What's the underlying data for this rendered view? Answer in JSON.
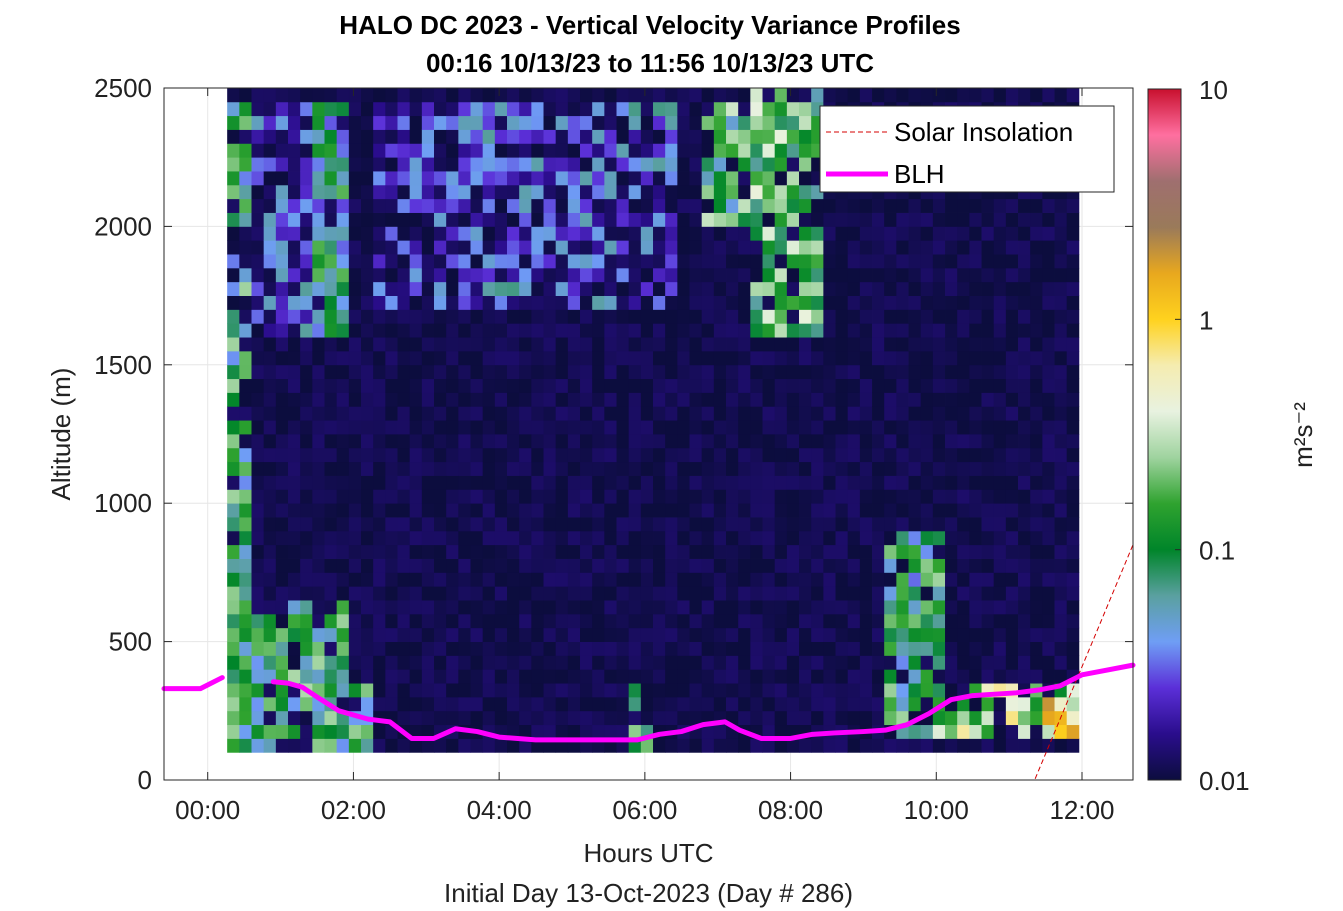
{
  "title": "HALO DC 2023 - Vertical Velocity Variance Profiles",
  "subtitle": "00:16 10/13/23 to 11:56 10/13/23  UTC",
  "chart_data": {
    "type": "heatmap",
    "title": "HALO DC 2023 - Vertical Velocity Variance Profiles",
    "subtitle": "00:16 10/13/23 to 11:56 10/13/23  UTC",
    "xlabel": "Hours UTC",
    "xlabel2": "Initial Day 13-Oct-2023 (Day # 286)",
    "ylabel": "Altitude (m)",
    "xlim_hours": [
      -0.6,
      12.7
    ],
    "ylim": [
      0,
      2500
    ],
    "x_ticks": [
      {
        "value": 0,
        "label": "00:00"
      },
      {
        "value": 2,
        "label": "02:00"
      },
      {
        "value": 4,
        "label": "04:00"
      },
      {
        "value": 6,
        "label": "06:00"
      },
      {
        "value": 8,
        "label": "08:00"
      },
      {
        "value": 10,
        "label": "10:00"
      },
      {
        "value": 12,
        "label": "12:00"
      }
    ],
    "y_ticks": [
      {
        "value": 0,
        "label": "0"
      },
      {
        "value": 500,
        "label": "500"
      },
      {
        "value": 1000,
        "label": "1000"
      },
      {
        "value": 1500,
        "label": "1500"
      },
      {
        "value": 2000,
        "label": "2000"
      },
      {
        "value": 2500,
        "label": "2500"
      }
    ],
    "grid": true,
    "legend_position": "top-right",
    "colorbar": {
      "label": "m²s⁻²",
      "scale": "log",
      "range": [
        0.01,
        10
      ],
      "ticks": [
        {
          "value": 0.01,
          "label": "0.01"
        },
        {
          "value": 0.1,
          "label": "0.1"
        },
        {
          "value": 1,
          "label": "1"
        },
        {
          "value": 10,
          "label": "10"
        }
      ],
      "colors": [
        "#0c0d3e",
        "#2a0d8c",
        "#5b2fd8",
        "#6f9ef5",
        "#5aa0a0",
        "#00852a",
        "#2fa32f",
        "#9fd39f",
        "#e8f2e0",
        "#f5ecb0",
        "#ffd21e",
        "#e8a81e",
        "#9a7a5a",
        "#9f6f6f",
        "#ff6fa0",
        "#c8102e"
      ]
    },
    "heatmap": {
      "time_start_hours": 0.267,
      "time_step_hours": 0.167,
      "altitude_start_m": 100,
      "altitude_step_m": 50,
      "background_value": 0.01,
      "elevated_regions": [
        {
          "t0": 0.25,
          "t1": 0.6,
          "z0": 250,
          "z1": 2450,
          "value": 0.09
        },
        {
          "t0": 0.6,
          "t1": 1.45,
          "z0": 1600,
          "z1": 2450,
          "value": 0.025
        },
        {
          "t0": 1.45,
          "t1": 1.9,
          "z0": 1600,
          "z1": 2450,
          "value": 0.07
        },
        {
          "t0": 0.25,
          "t1": 1.9,
          "z0": 100,
          "z1": 650,
          "value": 0.1
        },
        {
          "t0": 1.9,
          "t1": 2.2,
          "z0": 100,
          "z1": 350,
          "value": 0.1
        },
        {
          "t0": 2.2,
          "t1": 3.4,
          "z0": 1700,
          "z1": 2450,
          "value": 0.018
        },
        {
          "t0": 3.4,
          "t1": 6.3,
          "z0": 1700,
          "z1": 2450,
          "value": 0.025
        },
        {
          "t0": 5.8,
          "t1": 6.0,
          "z0": 100,
          "z1": 350,
          "value": 0.09
        },
        {
          "t0": 6.8,
          "t1": 7.4,
          "z0": 2000,
          "z1": 2450,
          "value": 0.12
        },
        {
          "t0": 7.4,
          "t1": 8.3,
          "z0": 1600,
          "z1": 2500,
          "value": 0.15
        },
        {
          "t0": 9.3,
          "t1": 10.0,
          "z0": 150,
          "z1": 900,
          "value": 0.09
        },
        {
          "t0": 10.0,
          "t1": 11.9,
          "z0": 150,
          "z1": 350,
          "value": 0.3
        },
        {
          "t0": 11.4,
          "t1": 11.9,
          "z0": 150,
          "z1": 300,
          "value": 0.8
        }
      ]
    },
    "series": [
      {
        "name": "Solar Insolation",
        "style": "dashed",
        "color": "#d40000",
        "x": [
          -0.6,
          11.35,
          12.7
        ],
        "y": [
          0,
          0,
          850
        ]
      },
      {
        "name": "BLH",
        "style": "solid",
        "color": "#ff00ff",
        "x": [
          -0.6,
          -0.1,
          0.2,
          0.6,
          0.9,
          1.1,
          1.3,
          1.5,
          1.8,
          2.2,
          2.5,
          2.8,
          3.1,
          3.4,
          3.7,
          4.0,
          4.5,
          5.0,
          5.5,
          5.9,
          6.2,
          6.5,
          6.8,
          7.1,
          7.3,
          7.6,
          8.0,
          8.3,
          8.6,
          9.0,
          9.3,
          9.6,
          9.9,
          10.2,
          10.5,
          10.8,
          11.1,
          11.4,
          11.7,
          12.0,
          12.3,
          12.7
        ],
        "y": [
          330,
          330,
          370,
          null,
          355,
          350,
          335,
          300,
          250,
          220,
          210,
          150,
          150,
          185,
          175,
          155,
          145,
          145,
          145,
          145,
          165,
          175,
          200,
          210,
          180,
          150,
          150,
          165,
          170,
          175,
          180,
          200,
          240,
          290,
          305,
          310,
          315,
          325,
          340,
          380,
          395,
          415
        ]
      }
    ]
  }
}
